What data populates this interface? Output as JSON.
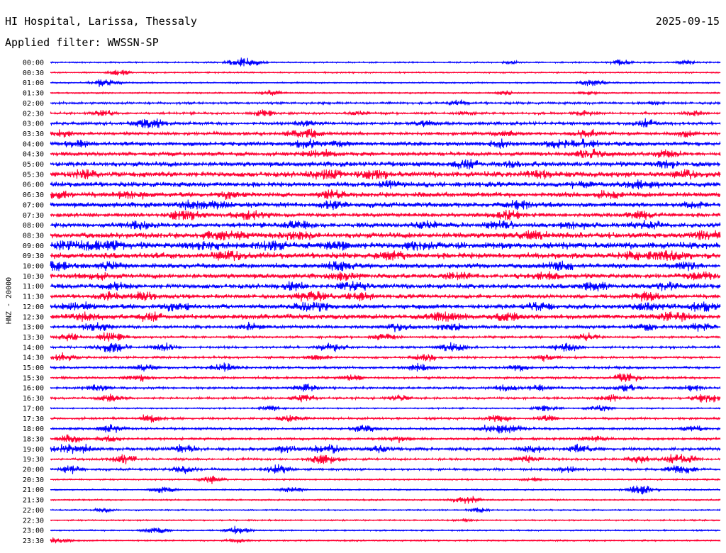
{
  "header": {
    "station": "HI Hospital, Larissa, Thessaly",
    "date": "2025-09-15",
    "filter": "Applied filter: WWSSN-SP"
  },
  "chart_data": {
    "type": "helicorder",
    "channel_label": "HNZ - 20000",
    "colors": [
      "#0000ff",
      "#ff0033"
    ],
    "rows": [
      {
        "time": "00:00",
        "activity": 1,
        "bursts": [
          [
            29,
            8
          ],
          [
            85,
            4
          ],
          [
            69,
            2
          ],
          [
            95,
            3
          ]
        ]
      },
      {
        "time": "00:30",
        "activity": 1,
        "bursts": [
          [
            10,
            3
          ],
          [
            11,
            2
          ]
        ]
      },
      {
        "time": "01:00",
        "activity": 1,
        "bursts": [
          [
            8,
            6
          ],
          [
            81,
            5
          ]
        ]
      },
      {
        "time": "01:30",
        "activity": 1,
        "bursts": [
          [
            33,
            4
          ],
          [
            68,
            3
          ],
          [
            80,
            3
          ]
        ]
      },
      {
        "time": "02:00",
        "activity": 2,
        "bursts": [
          [
            61,
            3
          ],
          [
            90,
            2
          ]
        ]
      },
      {
        "time": "02:30",
        "activity": 2,
        "bursts": [
          [
            8,
            4
          ],
          [
            32,
            5
          ],
          [
            46,
            3
          ],
          [
            62,
            3
          ],
          [
            80,
            4
          ],
          [
            96,
            4
          ]
        ]
      },
      {
        "time": "03:00",
        "activity": 3,
        "bursts": [
          [
            15,
            8
          ],
          [
            38,
            5
          ],
          [
            56,
            4
          ],
          [
            89,
            5
          ]
        ]
      },
      {
        "time": "03:30",
        "activity": 3,
        "bursts": [
          [
            2,
            4
          ],
          [
            38,
            8
          ],
          [
            68,
            4
          ],
          [
            80,
            5
          ],
          [
            95,
            4
          ]
        ]
      },
      {
        "time": "04:00",
        "activity": 4,
        "bursts": [
          [
            4,
            5
          ],
          [
            38,
            6
          ],
          [
            43,
            4
          ],
          [
            67,
            5
          ],
          [
            76,
            6
          ],
          [
            80,
            5
          ]
        ]
      },
      {
        "time": "04:30",
        "activity": 4,
        "bursts": [
          [
            40,
            6
          ],
          [
            81,
            8
          ],
          [
            92,
            5
          ]
        ]
      },
      {
        "time": "05:00",
        "activity": 5,
        "bursts": [
          [
            62,
            6
          ],
          [
            69,
            4
          ],
          [
            92,
            5
          ]
        ]
      },
      {
        "time": "05:30",
        "activity": 6,
        "bursts": [
          [
            5,
            6
          ],
          [
            41,
            7
          ],
          [
            48,
            8
          ],
          [
            73,
            6
          ],
          [
            95,
            5
          ]
        ]
      },
      {
        "time": "06:00",
        "activity": 5,
        "bursts": [
          [
            51,
            5
          ],
          [
            88,
            8
          ],
          [
            79,
            4
          ]
        ]
      },
      {
        "time": "06:30",
        "activity": 5,
        "bursts": [
          [
            1,
            6
          ],
          [
            12,
            6
          ],
          [
            27,
            5
          ],
          [
            42,
            6
          ],
          [
            83,
            5
          ]
        ]
      },
      {
        "time": "07:00",
        "activity": 5,
        "bursts": [
          [
            21,
            7
          ],
          [
            25,
            5
          ],
          [
            42,
            5
          ],
          [
            70,
            6
          ],
          [
            96,
            5
          ]
        ]
      },
      {
        "time": "07:30",
        "activity": 4,
        "bursts": [
          [
            20,
            9
          ],
          [
            30,
            9
          ],
          [
            68,
            7
          ],
          [
            88,
            6
          ]
        ]
      },
      {
        "time": "08:00",
        "activity": 5,
        "bursts": [
          [
            13,
            5
          ],
          [
            37,
            6
          ],
          [
            56,
            5
          ],
          [
            67,
            6
          ],
          [
            78,
            5
          ],
          [
            89,
            6
          ]
        ]
      },
      {
        "time": "08:30",
        "activity": 6,
        "bursts": [
          [
            26,
            9
          ],
          [
            36,
            8
          ],
          [
            72,
            5
          ],
          [
            98,
            6
          ]
        ]
      },
      {
        "time": "09:00",
        "activity": 7,
        "bursts": [
          [
            3,
            8
          ],
          [
            8,
            8
          ],
          [
            23,
            6
          ],
          [
            33,
            7
          ],
          [
            43,
            5
          ],
          [
            55,
            5
          ]
        ]
      },
      {
        "time": "09:30",
        "activity": 6,
        "bursts": [
          [
            27,
            7
          ],
          [
            51,
            7
          ],
          [
            88,
            8
          ],
          [
            93,
            7
          ]
        ]
      },
      {
        "time": "10:00",
        "activity": 5,
        "bursts": [
          [
            1,
            8
          ],
          [
            9,
            6
          ],
          [
            43,
            7
          ],
          [
            76,
            6
          ],
          [
            95,
            5
          ]
        ]
      },
      {
        "time": "10:30",
        "activity": 5,
        "bursts": [
          [
            7,
            5
          ],
          [
            44,
            6
          ],
          [
            61,
            5
          ],
          [
            74,
            5
          ],
          [
            97,
            6
          ]
        ]
      },
      {
        "time": "11:00",
        "activity": 5,
        "bursts": [
          [
            10,
            5
          ],
          [
            36,
            5
          ],
          [
            45,
            6
          ],
          [
            81,
            6
          ],
          [
            92,
            5
          ]
        ]
      },
      {
        "time": "11:30",
        "activity": 4,
        "bursts": [
          [
            9,
            5
          ],
          [
            14,
            6
          ],
          [
            39,
            8
          ],
          [
            46,
            6
          ],
          [
            89,
            7
          ]
        ]
      },
      {
        "time": "12:00",
        "activity": 5,
        "bursts": [
          [
            4,
            6
          ],
          [
            19,
            6
          ],
          [
            39,
            8
          ],
          [
            73,
            6
          ],
          [
            89,
            5
          ],
          [
            97,
            6
          ]
        ]
      },
      {
        "time": "12:30",
        "activity": 5,
        "bursts": [
          [
            5,
            6
          ],
          [
            15,
            5
          ],
          [
            59,
            8
          ],
          [
            68,
            6
          ],
          [
            93,
            7
          ]
        ]
      },
      {
        "time": "13:00",
        "activity": 3,
        "bursts": [
          [
            7,
            6
          ],
          [
            30,
            5
          ],
          [
            52,
            5
          ],
          [
            60,
            6
          ],
          [
            89,
            5
          ],
          [
            97,
            5
          ]
        ]
      },
      {
        "time": "13:30",
        "activity": 2,
        "bursts": [
          [
            3,
            5
          ],
          [
            9,
            6
          ],
          [
            50,
            5
          ],
          [
            80,
            5
          ]
        ]
      },
      {
        "time": "14:00",
        "activity": 2,
        "bursts": [
          [
            9,
            8
          ],
          [
            17,
            5
          ],
          [
            42,
            6
          ],
          [
            60,
            6
          ],
          [
            77,
            6
          ]
        ]
      },
      {
        "time": "14:30",
        "activity": 2,
        "bursts": [
          [
            2,
            5
          ],
          [
            40,
            4
          ],
          [
            56,
            5
          ],
          [
            74,
            4
          ]
        ]
      },
      {
        "time": "15:00",
        "activity": 2,
        "bursts": [
          [
            14,
            5
          ],
          [
            26,
            6
          ],
          [
            55,
            5
          ],
          [
            70,
            4
          ]
        ]
      },
      {
        "time": "15:30",
        "activity": 2,
        "bursts": [
          [
            13,
            5
          ],
          [
            45,
            4
          ],
          [
            86,
            6
          ]
        ]
      },
      {
        "time": "16:00",
        "activity": 2,
        "bursts": [
          [
            7,
            6
          ],
          [
            38,
            5
          ],
          [
            68,
            5
          ],
          [
            73,
            4
          ],
          [
            86,
            5
          ],
          [
            96,
            4
          ]
        ]
      },
      {
        "time": "16:30",
        "activity": 2,
        "bursts": [
          [
            9,
            5
          ],
          [
            38,
            5
          ],
          [
            52,
            4
          ],
          [
            84,
            5
          ],
          [
            98,
            6
          ]
        ]
      },
      {
        "time": "17:00",
        "activity": 1,
        "bursts": [
          [
            33,
            4
          ],
          [
            74,
            5
          ],
          [
            82,
            5
          ]
        ]
      },
      {
        "time": "17:30",
        "activity": 2,
        "bursts": [
          [
            15,
            5
          ],
          [
            36,
            5
          ],
          [
            67,
            5
          ],
          [
            74,
            4
          ]
        ]
      },
      {
        "time": "18:00",
        "activity": 2,
        "bursts": [
          [
            9,
            5
          ],
          [
            47,
            5
          ],
          [
            66,
            6
          ],
          [
            69,
            5
          ],
          [
            96,
            5
          ]
        ]
      },
      {
        "time": "18:30",
        "activity": 2,
        "bursts": [
          [
            3,
            5
          ],
          [
            9,
            4
          ],
          [
            52,
            4
          ],
          [
            81,
            4
          ]
        ]
      },
      {
        "time": "19:00",
        "activity": 3,
        "bursts": [
          [
            2,
            5
          ],
          [
            5,
            5
          ],
          [
            20,
            6
          ],
          [
            35,
            5
          ],
          [
            41,
            7
          ],
          [
            49,
            5
          ],
          [
            72,
            5
          ],
          [
            79,
            5
          ]
        ]
      },
      {
        "time": "19:30",
        "activity": 2,
        "bursts": [
          [
            11,
            6
          ],
          [
            41,
            8
          ],
          [
            71,
            5
          ],
          [
            88,
            5
          ],
          [
            94,
            8
          ]
        ]
      },
      {
        "time": "20:00",
        "activity": 2,
        "bursts": [
          [
            3,
            5
          ],
          [
            20,
            5
          ],
          [
            34,
            6
          ],
          [
            77,
            5
          ],
          [
            94,
            7
          ]
        ]
      },
      {
        "time": "20:30",
        "activity": 1,
        "bursts": [
          [
            24,
            5
          ],
          [
            72,
            3
          ]
        ]
      },
      {
        "time": "21:00",
        "activity": 1,
        "bursts": [
          [
            17,
            5
          ],
          [
            36,
            4
          ],
          [
            88,
            7
          ]
        ]
      },
      {
        "time": "21:30",
        "activity": 1,
        "bursts": [
          [
            62,
            6
          ]
        ]
      },
      {
        "time": "22:00",
        "activity": 1,
        "bursts": [
          [
            8,
            3
          ],
          [
            64,
            3
          ]
        ]
      },
      {
        "time": "22:30",
        "activity": 1,
        "bursts": [
          [
            62,
            2
          ]
        ]
      },
      {
        "time": "23:00",
        "activity": 1,
        "bursts": [
          [
            16,
            5
          ],
          [
            28,
            5
          ]
        ]
      },
      {
        "time": "23:30",
        "activity": 1,
        "bursts": [
          [
            1,
            5
          ],
          [
            28,
            3
          ]
        ]
      }
    ]
  }
}
